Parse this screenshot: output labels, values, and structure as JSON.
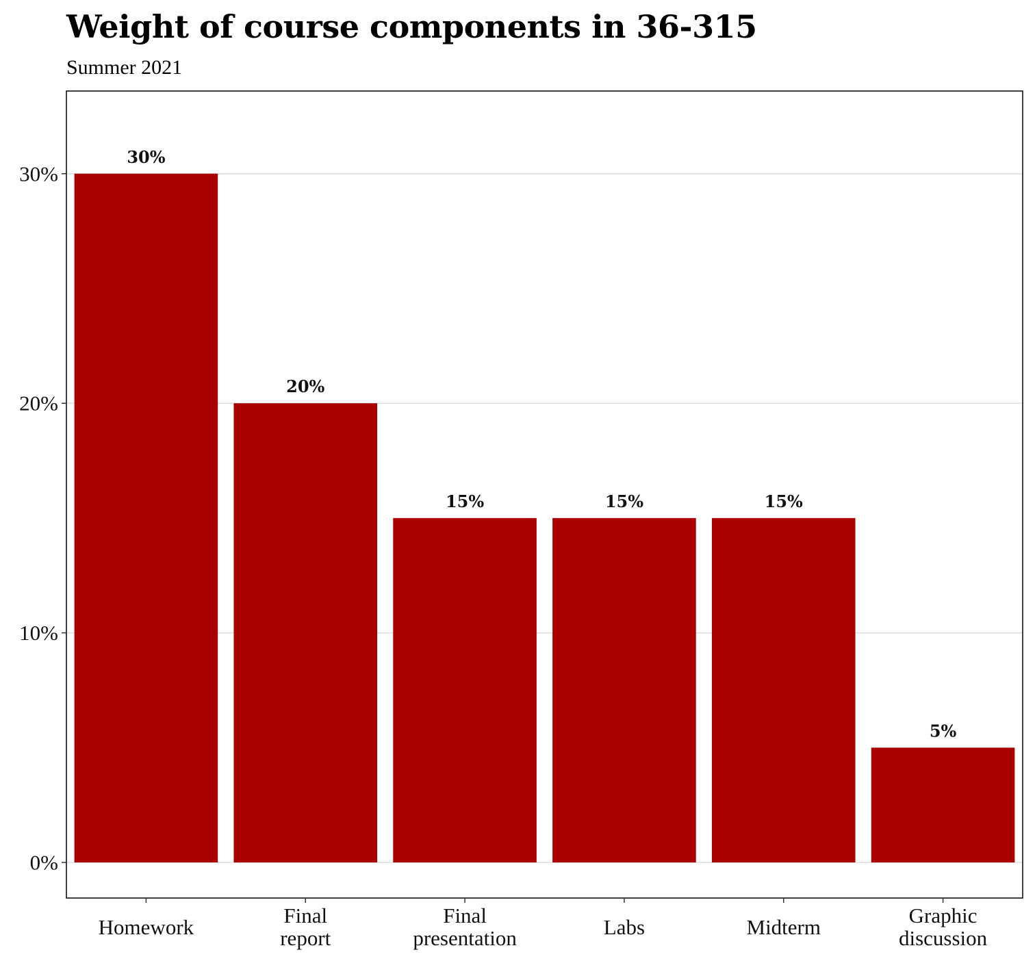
{
  "chart_data": {
    "type": "bar",
    "title": "Weight of course components in 36-315",
    "subtitle": "Summer 2021",
    "categories": [
      [
        "Homework"
      ],
      [
        "Final",
        "report"
      ],
      [
        "Final",
        "presentation"
      ],
      [
        "Labs"
      ],
      [
        "Midterm"
      ],
      [
        "Graphic",
        "discussion"
      ]
    ],
    "values": [
      30,
      20,
      15,
      15,
      15,
      5
    ],
    "data_labels": [
      "30%",
      "20%",
      "15%",
      "15%",
      "15%",
      "5%"
    ],
    "y_ticks": [
      0,
      10,
      20,
      30
    ],
    "y_tick_labels": [
      "0%",
      "10%",
      "20%",
      "30%"
    ],
    "ylim": [
      -1.55,
      33.6
    ],
    "grid": true,
    "bar_color": "#aa0000",
    "gridline_color": "#dddddd"
  }
}
